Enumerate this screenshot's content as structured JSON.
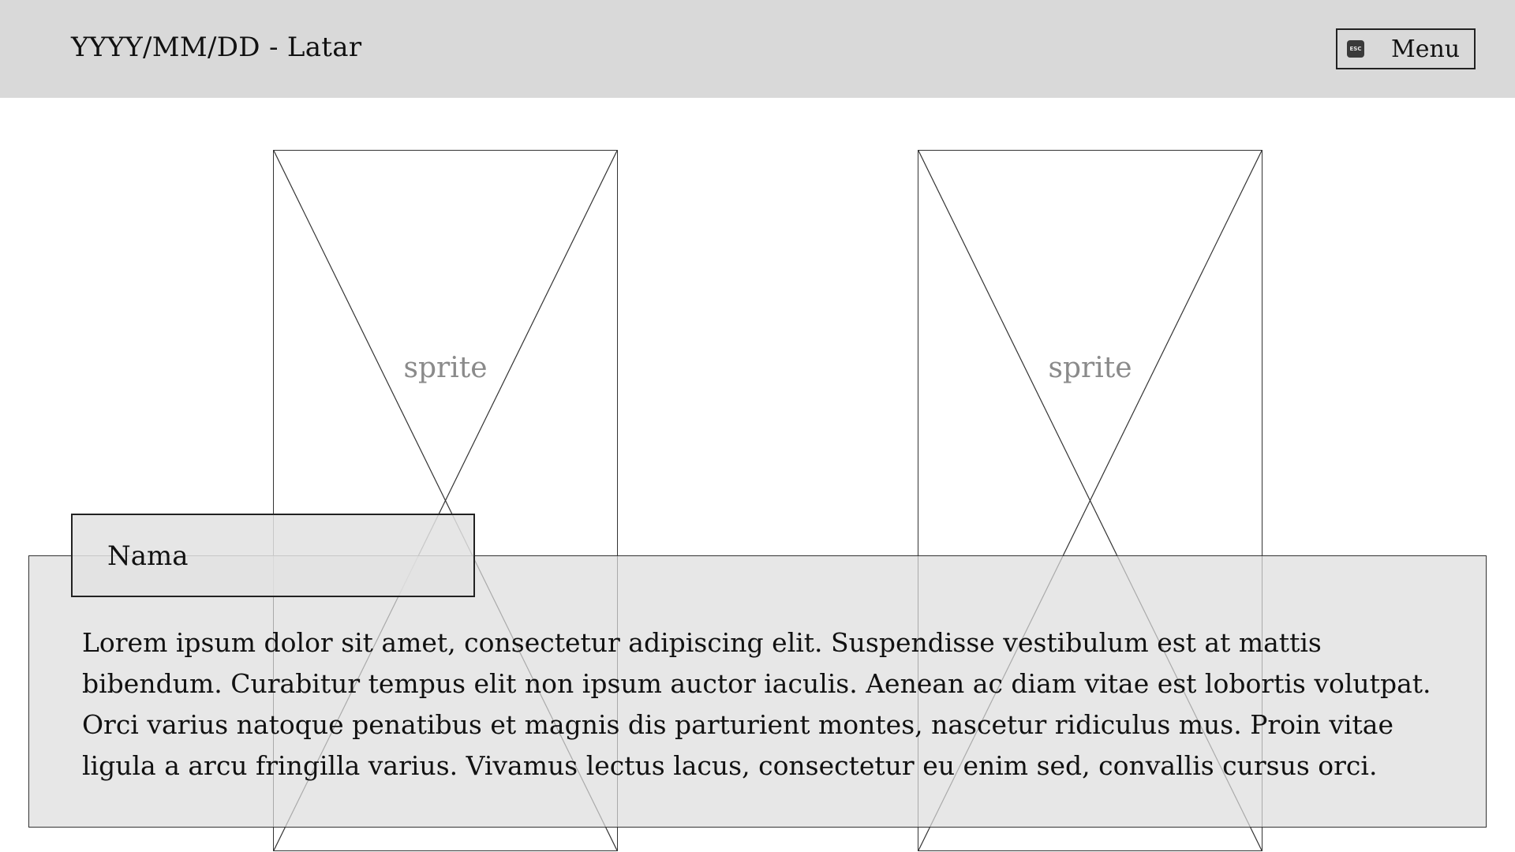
{
  "header": {
    "title": "YYYY/MM/DD - Latar",
    "menu_label": "Menu",
    "menu_icon": "esc-key-icon",
    "esc_text": "ESC"
  },
  "sprites": [
    {
      "label": "sprite"
    },
    {
      "label": "sprite"
    }
  ],
  "dialogue": {
    "speaker": "Nama",
    "text": "Lorem ipsum dolor sit amet, consectetur adipiscing elit. Suspendisse vestibulum est at mattis bibendum. Curabitur tempus elit non ipsum auctor iaculis. Aenean ac diam vitae est lobortis volutpat. Orci varius natoque penatibus et magnis dis parturient montes, nascetur ridiculus mus. Proin vitae ligula a arcu fringilla varius. Vivamus lectus lacus, consectetur eu enim sed, convallis cursus orci."
  },
  "colors": {
    "topbar": "#d9d9d9",
    "dialogue_bg": "#dddddd",
    "sprite_label": "#8a8a8a"
  }
}
